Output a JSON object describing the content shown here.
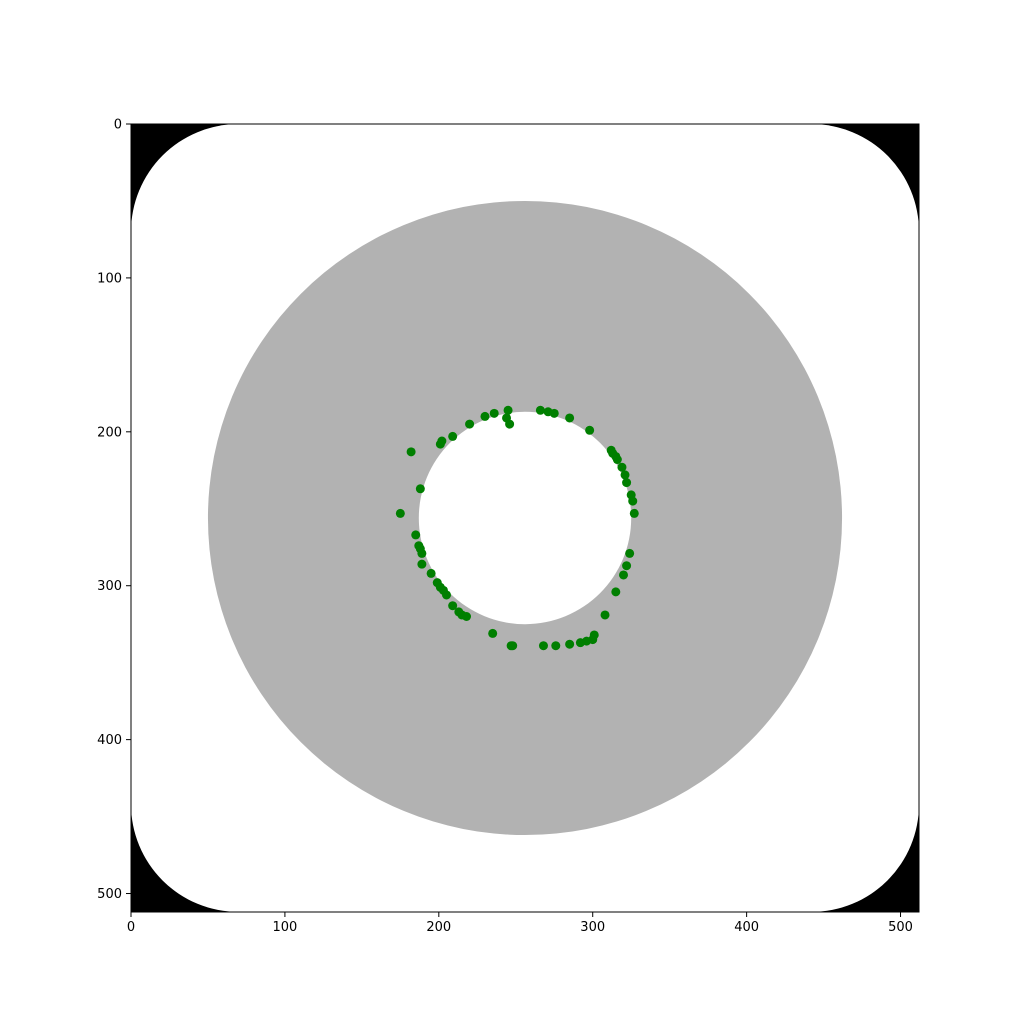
{
  "chart_data": {
    "type": "scatter",
    "title": "",
    "xlabel": "",
    "ylabel": "",
    "xlim": [
      0,
      512
    ],
    "ylim": [
      512,
      0
    ],
    "y_inverted": true,
    "grid": false,
    "image": {
      "description_type": "image",
      "corner_color": "#000000",
      "rounded_square_color": "#ffffff",
      "rounded_square_corner_radius": 70,
      "outer_disk": {
        "cx": 256,
        "cy": 256,
        "r": 206,
        "color": "#b2b2b2"
      },
      "inner_disk": {
        "cx": 256,
        "cy": 256,
        "r": 69,
        "color": "#ffffff"
      }
    },
    "x_ticks": [
      0,
      100,
      200,
      300,
      400,
      500
    ],
    "y_ticks": [
      0,
      100,
      200,
      300,
      400,
      500
    ],
    "series": [
      {
        "marker_color": "#007f00",
        "points": [
          [
            266,
            186
          ],
          [
            271,
            187
          ],
          [
            275,
            188
          ],
          [
            285,
            191
          ],
          [
            298,
            199
          ],
          [
            312,
            212
          ],
          [
            313,
            214
          ],
          [
            315,
            216
          ],
          [
            316,
            218
          ],
          [
            319,
            223
          ],
          [
            321,
            228
          ],
          [
            322,
            233
          ],
          [
            325,
            241
          ],
          [
            326,
            245
          ],
          [
            327,
            253
          ],
          [
            324,
            279
          ],
          [
            322,
            287
          ],
          [
            320,
            293
          ],
          [
            315,
            304
          ],
          [
            308,
            319
          ],
          [
            301,
            332
          ],
          [
            300,
            335
          ],
          [
            296,
            336
          ],
          [
            292,
            337
          ],
          [
            285,
            338
          ],
          [
            276,
            339
          ],
          [
            268,
            339
          ],
          [
            248,
            339
          ],
          [
            247,
            339
          ],
          [
            235,
            331
          ],
          [
            218,
            320
          ],
          [
            215,
            319
          ],
          [
            213,
            317
          ],
          [
            209,
            313
          ],
          [
            205,
            306
          ],
          [
            203,
            303
          ],
          [
            201,
            301
          ],
          [
            199,
            298
          ],
          [
            195,
            292
          ],
          [
            189,
            286
          ],
          [
            189,
            279
          ],
          [
            188,
            276
          ],
          [
            187,
            274
          ],
          [
            185,
            267
          ],
          [
            175,
            253
          ],
          [
            188,
            237
          ],
          [
            182,
            213
          ],
          [
            202,
            206
          ],
          [
            201,
            208
          ],
          [
            209,
            203
          ],
          [
            220,
            195
          ],
          [
            230,
            190
          ],
          [
            236,
            188
          ],
          [
            245,
            186
          ],
          [
            244,
            191
          ],
          [
            246,
            195
          ]
        ]
      }
    ]
  }
}
